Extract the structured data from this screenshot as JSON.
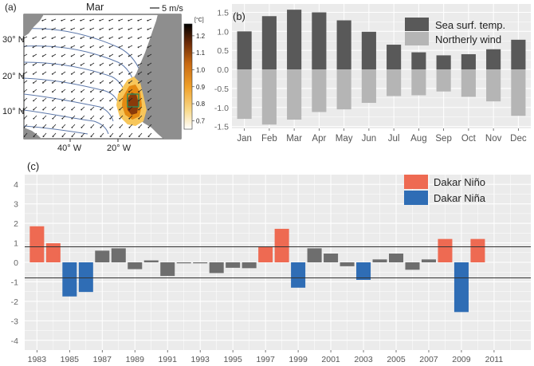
{
  "colors": {
    "panel_bg": "#ebebeb",
    "grid": "#ffffff",
    "sst": "#595959",
    "wind": "#b5b5b5",
    "nino": "#ee6a52",
    "nina": "#2f6db5",
    "neutral": "#6e6e6e",
    "ocean": "#ffffff",
    "land": "#8e8e8e",
    "contour": "#5d78aa",
    "hot": [
      "#ffffff",
      "#f7c65a",
      "#e48a12",
      "#b35a10",
      "#6b2a08",
      "#000000"
    ]
  },
  "panel_a": {
    "label": "(a)",
    "month": "Mar",
    "wind_scale": "5 m/s",
    "lat_ticks": [
      "30° N",
      "20° N",
      "10° N"
    ],
    "lon_ticks": [
      "40° W",
      "20° W"
    ],
    "colorbar_unit": "[°C]",
    "colorbar_ticks": [
      "1.2",
      "1.1",
      "1.0",
      "0.9",
      "0.8",
      "0.7"
    ],
    "colorbar_range": [
      0.65,
      1.27
    ]
  },
  "chart_data": [
    {
      "type": "bar",
      "panel": "(b)",
      "categories": [
        "Jan",
        "Feb",
        "Mar",
        "Apr",
        "May",
        "Jun",
        "Jul",
        "Aug",
        "Sep",
        "Oct",
        "Nov",
        "Dec"
      ],
      "series": [
        {
          "name": "Sea surf. temp.",
          "values": [
            1.0,
            1.4,
            1.57,
            1.5,
            1.29,
            0.99,
            0.65,
            0.45,
            0.37,
            0.4,
            0.53,
            0.78
          ]
        },
        {
          "name": "Northerly wind",
          "values": [
            -1.3,
            -1.45,
            -1.32,
            -1.12,
            -1.05,
            -0.88,
            -0.7,
            -0.68,
            -0.58,
            -0.72,
            -0.84,
            -1.22
          ]
        }
      ],
      "yticks": [
        "1.5",
        "1.0",
        "0.5",
        "0.0",
        "-0.5",
        "-1.0",
        "-1.5"
      ],
      "ylim": [
        -1.55,
        1.72
      ],
      "legend_position": "top-right"
    },
    {
      "type": "bar",
      "panel": "(c)",
      "x": [
        1983,
        1984,
        1985,
        1986,
        1987,
        1988,
        1989,
        1990,
        1991,
        1992,
        1993,
        1994,
        1995,
        1996,
        1997,
        1998,
        1999,
        2000,
        2001,
        2002,
        2003,
        2004,
        2005,
        2006,
        2007,
        2008,
        2009,
        2010
      ],
      "values": [
        1.85,
        0.98,
        -1.75,
        -1.52,
        0.6,
        0.72,
        -0.35,
        0.1,
        -0.7,
        -0.05,
        -0.05,
        -0.55,
        -0.28,
        -0.3,
        0.82,
        1.72,
        -1.3,
        0.72,
        0.45,
        -0.2,
        -0.9,
        0.15,
        0.45,
        -0.38,
        0.15,
        1.2,
        -2.55,
        1.2
      ],
      "class": [
        "nino",
        "nino",
        "nina",
        "nina",
        "neutral",
        "neutral",
        "neutral",
        "neutral",
        "neutral",
        "neutral",
        "neutral",
        "neutral",
        "neutral",
        "neutral",
        "nino",
        "nino",
        "nina",
        "neutral",
        "neutral",
        "neutral",
        "nina",
        "neutral",
        "neutral",
        "neutral",
        "neutral",
        "nino",
        "nina",
        "nino"
      ],
      "xtick_labels": [
        "1983",
        "1985",
        "1987",
        "1989",
        "1991",
        "1993",
        "1995",
        "1997",
        "1999",
        "2001",
        "2003",
        "2005",
        "2007",
        "2009",
        "2011"
      ],
      "yticks": [
        "4",
        "3",
        "2",
        "1",
        "0",
        "-1",
        "-2",
        "-3",
        "-4"
      ],
      "ylim": [
        -4.5,
        4.5
      ],
      "threshold_lines": [
        0.8,
        -0.8
      ],
      "legend": [
        {
          "name": "Dakar Niño",
          "class": "nino"
        },
        {
          "name": "Dakar Niña",
          "class": "nina"
        }
      ],
      "legend_position": "top-right"
    }
  ]
}
